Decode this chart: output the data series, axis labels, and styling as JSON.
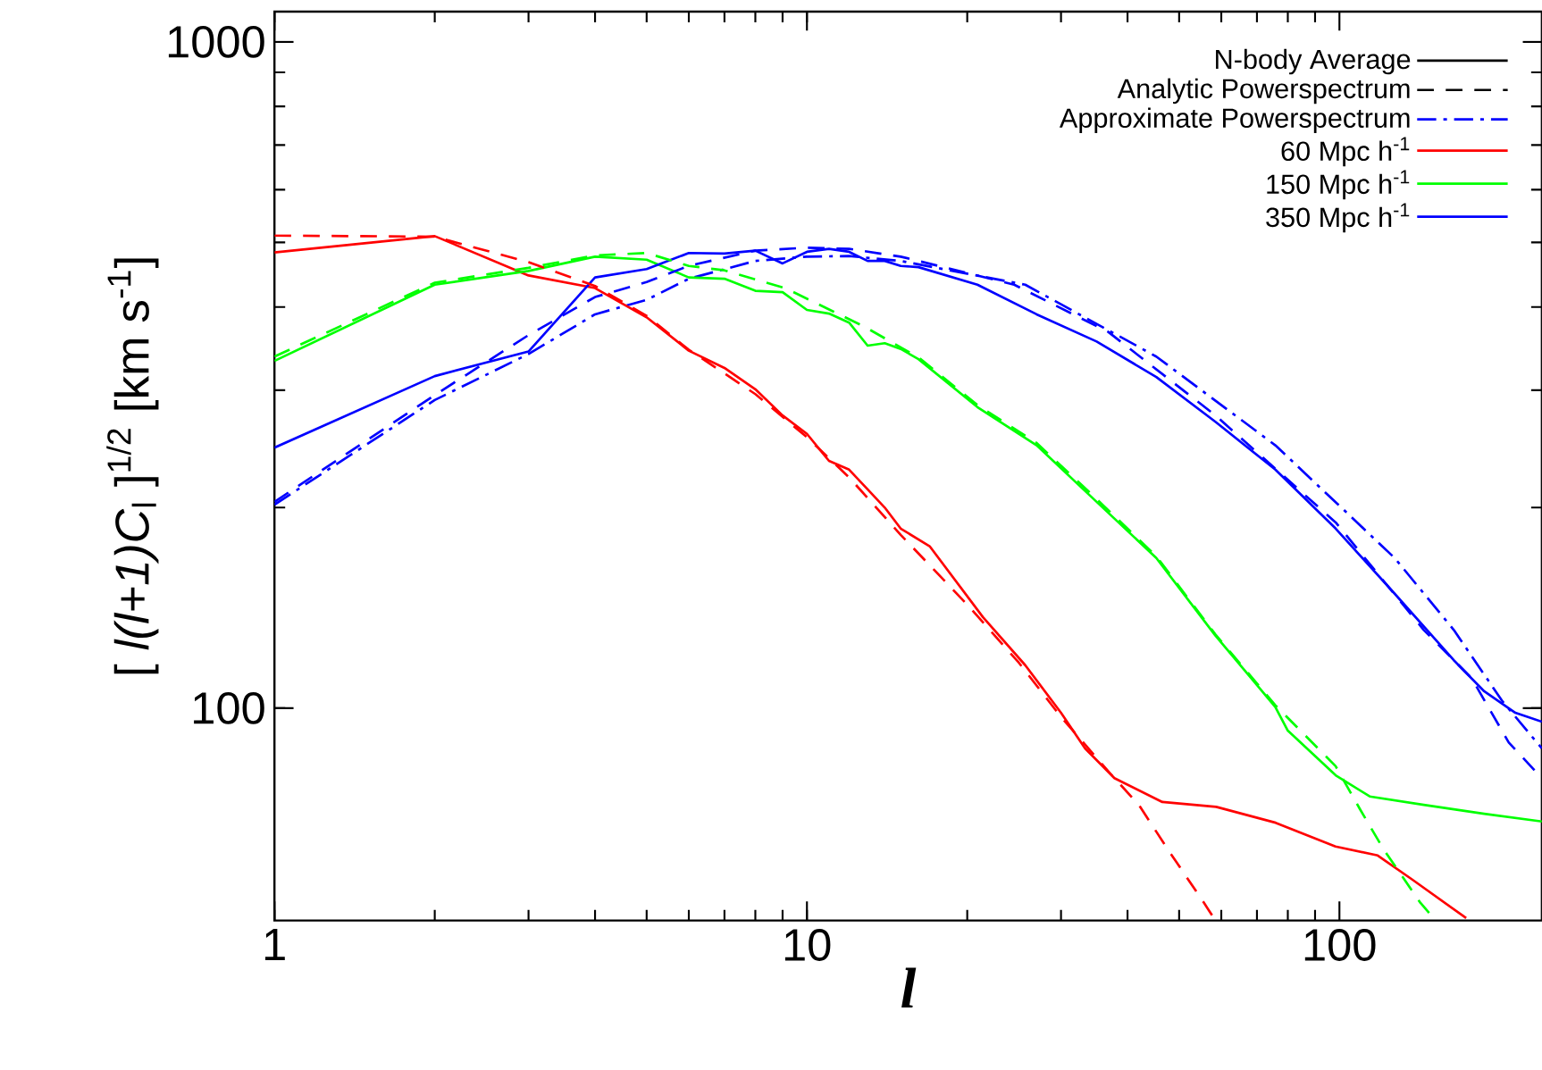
{
  "chart_data": {
    "type": "line",
    "xlabel": "l",
    "ylabel": "[ *l(l+1)C*$_{l}$ ]$^{1/2}$ [km s$^{-1}$]",
    "log": "xy",
    "xlim": [
      1,
      240
    ],
    "ylim": [
      48,
      1110
    ],
    "xticks": [
      1,
      10,
      100
    ],
    "yticks": [
      100,
      1000
    ],
    "legend": "top right",
    "series": [
      {
        "name": "N-body Average",
        "color": "#000000",
        "line_style": "solid"
      },
      {
        "name": "Analytic Powerspectrum",
        "color": "#000000",
        "line_style": "dashed"
      },
      {
        "name": "Approximate Powerspectrum",
        "color": "#0000ff",
        "line_style": "dashdot",
        "x": [
          1,
          2,
          3,
          4,
          5,
          6,
          8,
          10,
          12,
          15,
          25.7,
          45.3,
          75.8,
          127,
          164,
          202,
          240
        ],
        "values": [
          202,
          290,
          340,
          390,
          410,
          441,
          469,
          476,
          477,
          469,
          432,
          337,
          248,
          168,
          131,
          102.6,
          87
        ]
      },
      {
        "name": "60 Mpc h$^{-1}$",
        "color": "#ff0000",
        "line_style": "solid",
        "x": [
          1,
          2,
          3,
          4,
          5,
          6,
          7,
          8,
          9,
          10,
          11,
          12,
          13,
          14,
          15,
          17,
          21.4,
          25.7,
          30,
          33.3,
          37.8,
          46.5,
          58.7,
          75.9,
          98.3,
          118,
          137,
          173
        ],
        "values": [
          483,
          511,
          446,
          427,
          386,
          344,
          324,
          301,
          275,
          258,
          235,
          228,
          213,
          200,
          186,
          175,
          137,
          116,
          98.4,
          87,
          78.5,
          72.3,
          71.1,
          67.3,
          62,
          60.1,
          55.3,
          48.4
        ]
      },
      {
        "name": "150 Mpc h$^{-1}$",
        "color": "#00ff00",
        "line_style": "solid",
        "x": [
          1,
          2,
          3,
          4,
          5,
          6,
          7,
          8,
          9,
          10,
          11,
          12,
          13,
          14,
          15,
          16.2,
          20.9,
          27,
          35,
          45.3,
          58.5,
          75.8,
          80,
          98.4,
          114,
          144,
          187,
          240
        ],
        "values": [
          332,
          432,
          453,
          476,
          471,
          443,
          441,
          423,
          421,
          396,
          391,
          379,
          350,
          353,
          346,
          334,
          283,
          248,
          204,
          168,
          128.5,
          100.4,
          92.5,
          79.3,
          73.7,
          71.6,
          69.4,
          67.6
        ]
      },
      {
        "name": "350 Mpc h$^{-1}$",
        "color": "#0000ff",
        "line_style": "solid",
        "x": [
          1,
          2,
          3,
          4,
          5,
          6,
          7,
          8,
          9,
          10,
          11,
          12,
          13,
          14,
          15,
          16.2,
          20.9,
          27,
          35,
          45.3,
          58.5,
          75.8,
          98.4,
          127,
          164,
          187,
          214,
          240
        ],
        "values": [
          246,
          315,
          343,
          443,
          456,
          482,
          481,
          486,
          465,
          484,
          489,
          484,
          469,
          469,
          461,
          459,
          432,
          390,
          355,
          314,
          269,
          228,
          186,
          148.5,
          118,
          106,
          98.4,
          95.4
        ]
      },
      {
        "color": "#ff0000",
        "line_style": "dashed",
        "x": [
          1,
          2,
          3,
          4,
          5,
          6,
          7,
          8,
          10,
          12,
          15,
          20,
          25,
          30,
          37,
          42,
          47.6,
          55.6,
          58
        ],
        "values": [
          512,
          510,
          467,
          430,
          388,
          345,
          318,
          296,
          255,
          222,
          182,
          143,
          117,
          97,
          80,
          71.6,
          61.4,
          51.1,
          48.5
        ]
      },
      {
        "color": "#00ff00",
        "line_style": "dashed",
        "x": [
          1,
          2,
          3,
          4,
          5,
          6,
          7,
          9.1,
          12.8,
          16.2,
          20.9,
          27,
          35,
          45.3,
          58.5,
          75.8,
          98.4,
          109,
          121,
          142,
          150
        ],
        "values": [
          337,
          435,
          458,
          478,
          482,
          461,
          454,
          427,
          374,
          336,
          285,
          250,
          206,
          169,
          129,
          101,
          81.8,
          70.8,
          61.4,
          51,
          48.5
        ]
      },
      {
        "color": "#0000ff",
        "line_style": "dashed",
        "x": [
          1,
          2,
          3,
          4,
          5,
          6,
          8,
          10,
          12,
          15,
          16.2,
          24.5,
          36.8,
          58.5,
          98.4,
          144,
          177,
          208,
          240
        ],
        "values": [
          204,
          295,
          363,
          414,
          436,
          461,
          486,
          491,
          489,
          476,
          469,
          432,
          367,
          275,
          190,
          131,
          111,
          88.8,
          78.5
        ]
      }
    ]
  }
}
